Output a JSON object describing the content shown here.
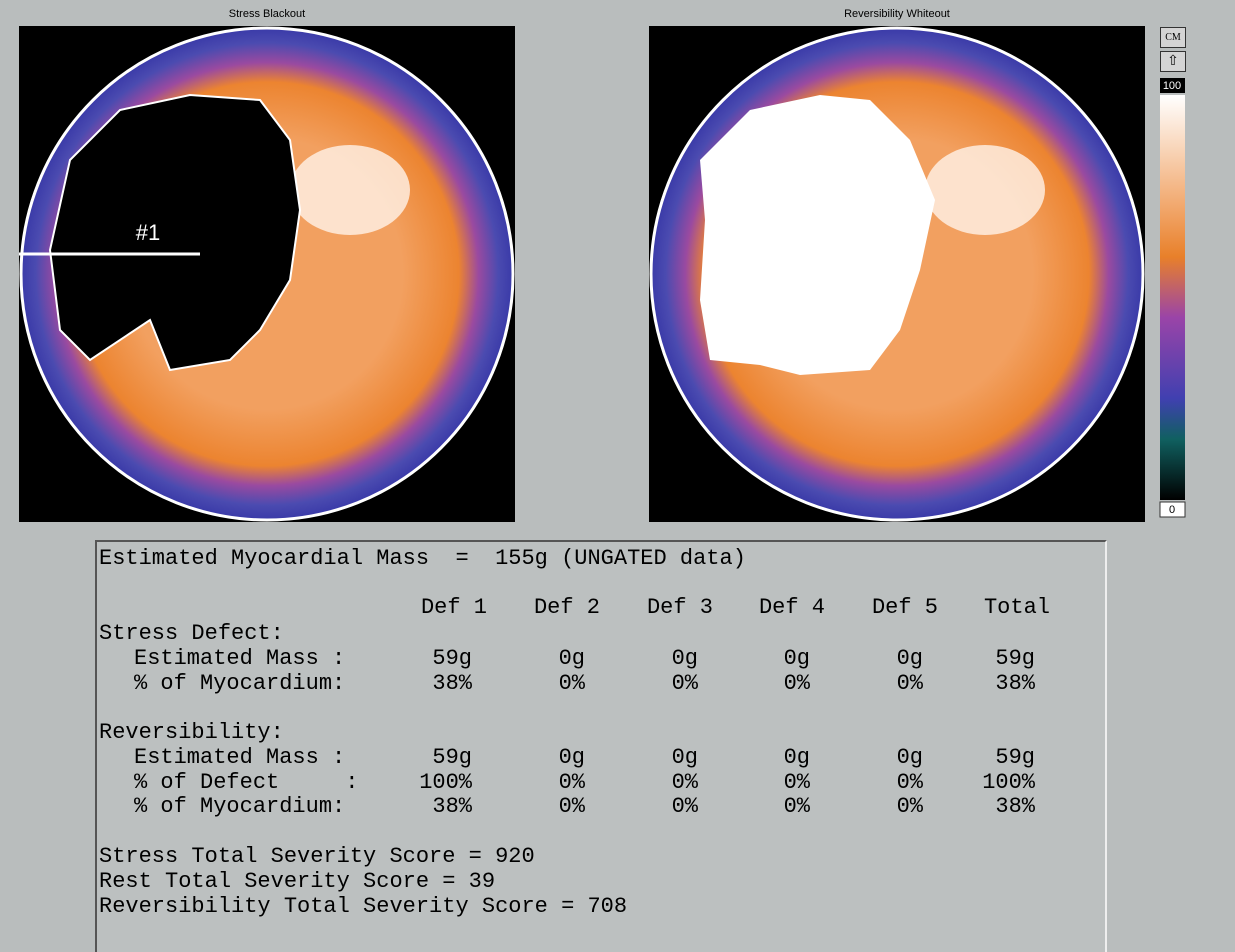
{
  "maps": [
    {
      "title": "Stress Blackout",
      "annotation": "#1"
    },
    {
      "title": "Reversibility Whiteout"
    }
  ],
  "colorbar": {
    "button": "CM",
    "top_label": "100",
    "bottom_label": "0"
  },
  "report": {
    "mass_line": "Estimated Myocardial Mass  =  155g (UNGATED data)",
    "columns": [
      "Def 1",
      "Def 2",
      "Def 3",
      "Def 4",
      "Def 5",
      "Total"
    ],
    "sections": [
      {
        "title": "Stress Defect:",
        "rows": [
          {
            "label": "Estimated Mass :",
            "cells": [
              "59g",
              "0g",
              "0g",
              "0g",
              "0g",
              "59g"
            ]
          },
          {
            "label": "% of Myocardium:",
            "cells": [
              "38%",
              "0%",
              "0%",
              "0%",
              "0%",
              "38%"
            ]
          }
        ]
      },
      {
        "title": "Reversibility:",
        "rows": [
          {
            "label": "Estimated Mass :",
            "cells": [
              "59g",
              "0g",
              "0g",
              "0g",
              "0g",
              "59g"
            ]
          },
          {
            "label": "% of Defect     :",
            "cells": [
              "100%",
              "0%",
              "0%",
              "0%",
              "0%",
              "100%"
            ]
          },
          {
            "label": "% of Myocardium:",
            "cells": [
              "38%",
              "0%",
              "0%",
              "0%",
              "0%",
              "38%"
            ]
          }
        ]
      }
    ],
    "scores": [
      "Stress Total Severity Score = 920",
      "Rest Total Severity Score = 39",
      "Reversibility Total Severity Score = 708"
    ]
  }
}
